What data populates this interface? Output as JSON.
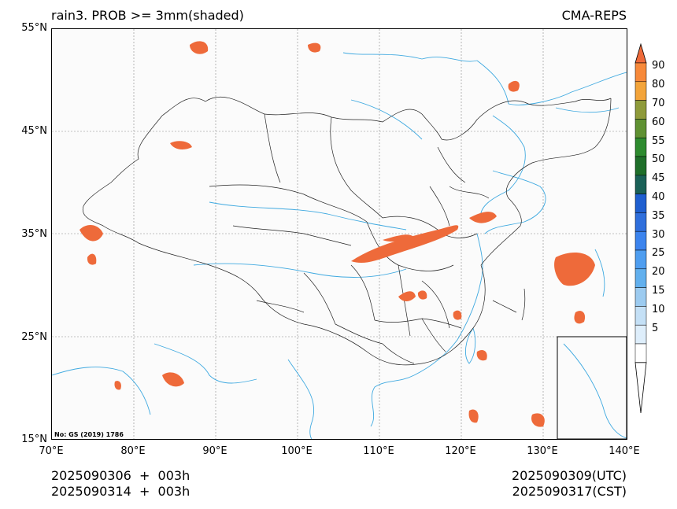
{
  "header": {
    "title_left": "rain3. PROB >= 3mm(shaded)",
    "title_right": "CMA-REPS"
  },
  "map": {
    "lat_labels": [
      "55°N",
      "45°N",
      "35°N",
      "25°N",
      "15°N"
    ],
    "lon_labels": [
      "70°E",
      "80°E",
      "90°E",
      "100°E",
      "110°E",
      "120°E",
      "130°E",
      "140°E"
    ],
    "credit": "No: GS (2019) 1786",
    "colors": {
      "coast": "#3fa9e0",
      "border": "#222222",
      "grid": "#888888",
      "shade": "#ee6a3a"
    }
  },
  "colorbar": {
    "levels": [
      "5",
      "10",
      "15",
      "20",
      "25",
      "30",
      "35",
      "40",
      "45",
      "50",
      "55",
      "60",
      "70",
      "80",
      "90"
    ],
    "colors": [
      "#deeefb",
      "#c4e0f6",
      "#9ccbf0",
      "#62b0ee",
      "#4f9ef0",
      "#3c84ee",
      "#2f6fdc",
      "#1f5fd0",
      "#1a6157",
      "#1f6f2a",
      "#2e8b2f",
      "#5f9132",
      "#8e9a3a",
      "#f3a43a",
      "#f7893a",
      "#ee6a3a"
    ]
  },
  "footer": {
    "init_utc": "2025090306  +  003h",
    "init_cst": "2025090314  +  003h",
    "valid_utc": "2025090309(UTC)",
    "valid_cst": "2025090317(CST)"
  }
}
